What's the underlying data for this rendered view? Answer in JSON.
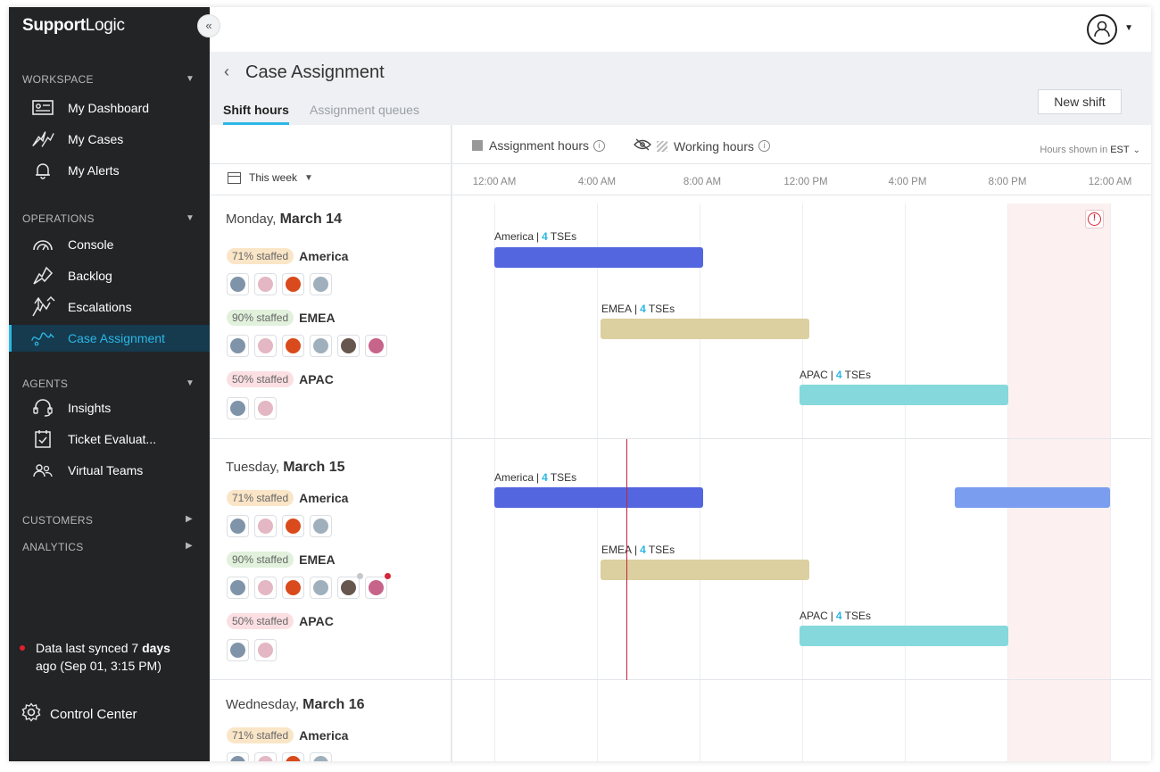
{
  "brand": {
    "logo_a": "Support",
    "logo_b": "Logic"
  },
  "sidebar": {
    "collapse_icon": "«",
    "sections": {
      "workspace": "WORKSPACE",
      "operations": "OPERATIONS",
      "agents": "AGENTS",
      "customers": "CUSTOMERS",
      "analytics": "ANALYTICS"
    },
    "items": [
      {
        "label": "My Dashboard",
        "icon": "id-card-icon"
      },
      {
        "label": "My Cases",
        "icon": "cases-icon"
      },
      {
        "label": "My Alerts",
        "icon": "bell-icon"
      },
      {
        "label": "Console",
        "icon": "gauge-icon"
      },
      {
        "label": "Backlog",
        "icon": "backlog-icon"
      },
      {
        "label": "Escalations",
        "icon": "escalation-icon"
      },
      {
        "label": "Case Assignment",
        "icon": "case-assignment-icon"
      },
      {
        "label": "Insights",
        "icon": "headset-icon"
      },
      {
        "label": "Ticket Evaluat...",
        "icon": "checklist-icon"
      },
      {
        "label": "Virtual Teams",
        "icon": "people-icon"
      }
    ],
    "sync_prefix": "Data last synced 7 ",
    "sync_bold": "days",
    "sync_suffix": "ago (Sep 01, 3:15 PM)",
    "control_center": "Control Center"
  },
  "page": {
    "back": "‹",
    "title": "Case Assignment",
    "tabs": [
      "Shift hours",
      "Assignment queues"
    ],
    "new_shift": "New shift"
  },
  "filters": {
    "week": "This week"
  },
  "legend": {
    "assignment": "Assignment hours",
    "working": "Working hours",
    "tz_prefix": "Hours shown in",
    "tz": "EST"
  },
  "ticks": [
    "12:00 AM",
    "4:00 AM",
    "8:00 AM",
    "12:00 PM",
    "4:00 PM",
    "8:00 PM",
    "12:00 AM"
  ],
  "days": [
    {
      "weekday": "Monday,",
      "date": "March 14",
      "teams": [
        {
          "staffed": "71% staffed",
          "name": "America",
          "tses": "4",
          "avatars": 4
        },
        {
          "staffed": "90% staffed",
          "name": "EMEA",
          "tses": "4",
          "avatars": 6
        },
        {
          "staffed": "50% staffed",
          "name": "APAC",
          "tses": "4",
          "avatars": 2
        }
      ]
    },
    {
      "weekday": "Tuesday,",
      "date": "March 15",
      "teams": [
        {
          "staffed": "71% staffed",
          "name": "America",
          "tses": "4",
          "avatars": 4
        },
        {
          "staffed": "90% staffed",
          "name": "EMEA",
          "tses": "4",
          "avatars": 6
        },
        {
          "staffed": "50% staffed",
          "name": "APAC",
          "tses": "4",
          "avatars": 2
        }
      ]
    },
    {
      "weekday": "Wednesday,",
      "date": "March 16",
      "teams": [
        {
          "staffed": "71% staffed",
          "name": "America",
          "tses": "",
          "avatars": 4
        }
      ]
    }
  ],
  "bar_text": {
    "sep": "|",
    "unit": "TSEs"
  },
  "colors": {
    "sidebar_bg": "#222426",
    "accent": "#2bb7e5",
    "america": "#5366e0",
    "emea": "#dccfa0",
    "apac": "#85d9dc",
    "alert": "#d6263a"
  }
}
